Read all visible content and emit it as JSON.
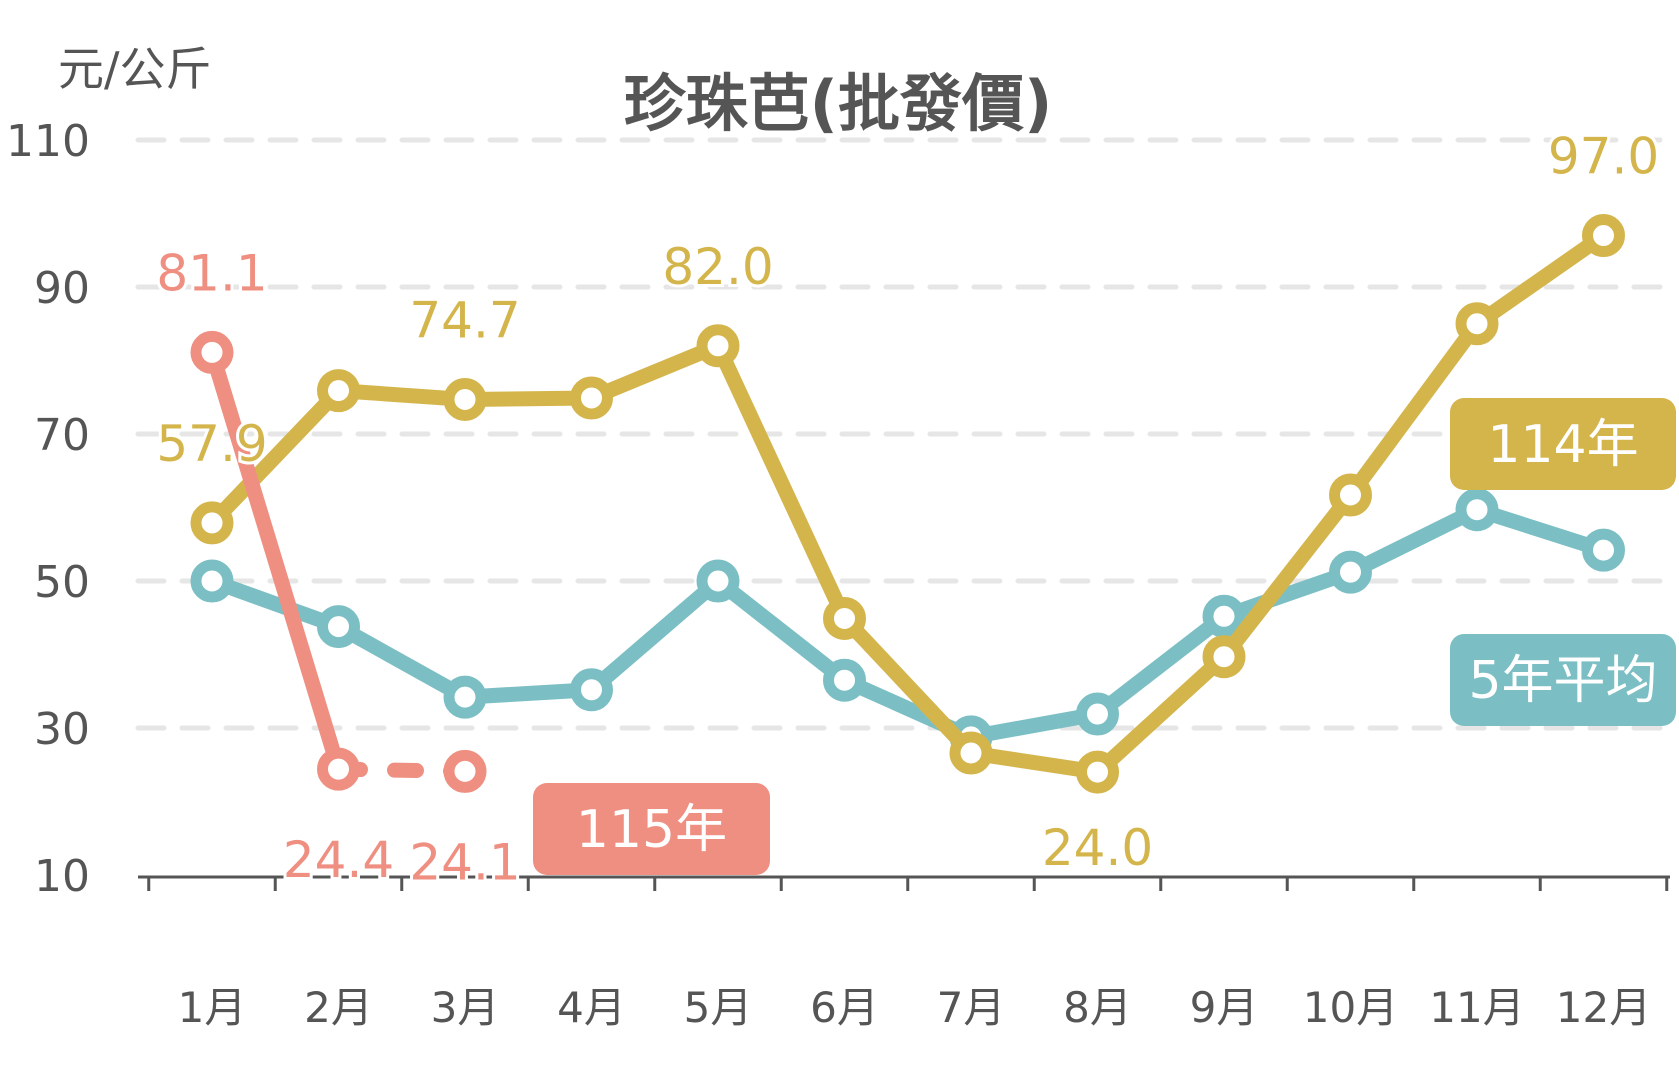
{
  "chart_data": {
    "type": "line",
    "title": "珍珠芭(批發價)",
    "ylabel": "元/公斤",
    "xlabel": "",
    "ylim": [
      10,
      110
    ],
    "yticks": [
      10,
      30,
      50,
      70,
      90,
      110
    ],
    "grid": true,
    "categories": [
      "1月",
      "2月",
      "3月",
      "4月",
      "5月",
      "6月",
      "7月",
      "8月",
      "9月",
      "10月",
      "11月",
      "12月"
    ],
    "series": [
      {
        "name": "5年平均",
        "legend_label": "5年平均",
        "color": "#7bbfc4",
        "values": [
          50.0,
          43.8,
          34.2,
          35.2,
          50.0,
          36.5,
          28.8,
          31.9,
          45.2,
          51.2,
          59.7,
          54.2
        ]
      },
      {
        "name": "114年",
        "legend_label": "114年",
        "color": "#d4b54c",
        "values": [
          57.9,
          75.9,
          74.7,
          74.9,
          82.0,
          44.9,
          26.6,
          24.0,
          39.7,
          61.7,
          85.0,
          97.0
        ],
        "data_labels": [
          {
            "index": 0,
            "text": "57.9"
          },
          {
            "index": 2,
            "text": "74.7"
          },
          {
            "index": 4,
            "text": "82.0"
          },
          {
            "index": 7,
            "text": "24.0"
          },
          {
            "index": 11,
            "text": "97.0"
          }
        ]
      },
      {
        "name": "115年",
        "legend_label": "115年",
        "color": "#ef8f81",
        "values": [
          81.1,
          24.4,
          24.1,
          null,
          null,
          null,
          null,
          null,
          null,
          null,
          null,
          null
        ],
        "dashed_segments": [
          1
        ],
        "data_labels": [
          {
            "index": 0,
            "text": "81.1"
          },
          {
            "index": 1,
            "text": "24.4"
          },
          {
            "index": 2,
            "text": "24.1"
          }
        ]
      }
    ]
  }
}
